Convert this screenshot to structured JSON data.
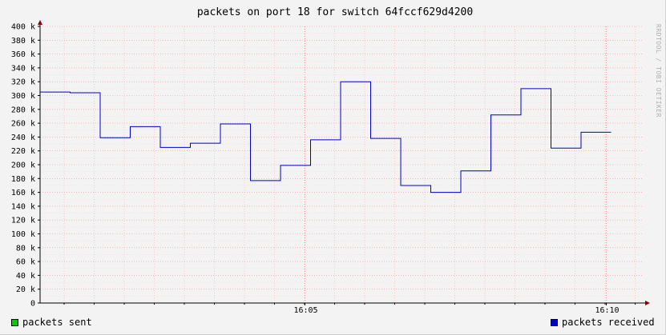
{
  "chart_data": {
    "type": "line",
    "title": "packets on  port 18  for switch 64fccf629d4200",
    "watermark": "RRDTOOL / TOBI OETIKER",
    "ylim": [
      0,
      400000
    ],
    "y_ticks": [
      0,
      20000,
      40000,
      60000,
      80000,
      100000,
      120000,
      140000,
      160000,
      180000,
      200000,
      220000,
      240000,
      260000,
      280000,
      300000,
      320000,
      340000,
      360000,
      380000,
      400000
    ],
    "y_tick_labels": [
      "0",
      "20 k",
      "40 k",
      "60 k",
      "80 k",
      "100 k",
      "120 k",
      "140 k",
      "160 k",
      "180 k",
      "200 k",
      "220 k",
      "240 k",
      "260 k",
      "280 k",
      "300 k",
      "320 k",
      "340 k",
      "360 k",
      "380 k",
      "400 k"
    ],
    "x_tick_labels": [
      "16:05",
      "16:10"
    ],
    "grid": true,
    "legend_placement": "bottom",
    "series": [
      {
        "name": "packets sent",
        "color": "#00cc00",
        "values": []
      },
      {
        "name": "packets received",
        "color": "#0000cc",
        "step": true,
        "values": [
          305000,
          304000,
          239000,
          255000,
          225000,
          231000,
          259000,
          177000,
          199000,
          236000,
          320000,
          238000,
          170000,
          160000,
          191000,
          272000,
          310000,
          224000,
          247000
        ]
      }
    ]
  },
  "legend": {
    "sent_label": "packets sent",
    "received_label": "packets received"
  }
}
